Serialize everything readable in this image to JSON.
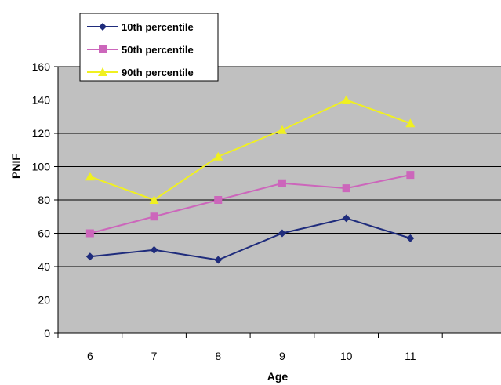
{
  "chart_data": {
    "type": "line",
    "title": "",
    "xlabel": "Age",
    "ylabel": "PNIF",
    "categories": [
      "6",
      "7",
      "8",
      "9",
      "10",
      "11"
    ],
    "ylim": [
      0,
      160
    ],
    "yticks": [
      0,
      20,
      40,
      60,
      80,
      100,
      120,
      140,
      160
    ],
    "grid": true,
    "legend_position": "top-left",
    "plot_background": "#c0c0c0",
    "series": [
      {
        "name": "10th percentile",
        "color": "#1f2c7c",
        "marker": "diamond",
        "values": [
          46,
          50,
          44,
          60,
          69,
          57
        ]
      },
      {
        "name": "50th percentile",
        "color": "#cc66bb",
        "marker": "square",
        "values": [
          60,
          70,
          80,
          90,
          87,
          95
        ]
      },
      {
        "name": "90th percentile",
        "color": "#f0f020",
        "marker": "triangle",
        "values": [
          94,
          80,
          106,
          122,
          140,
          126
        ]
      }
    ]
  }
}
